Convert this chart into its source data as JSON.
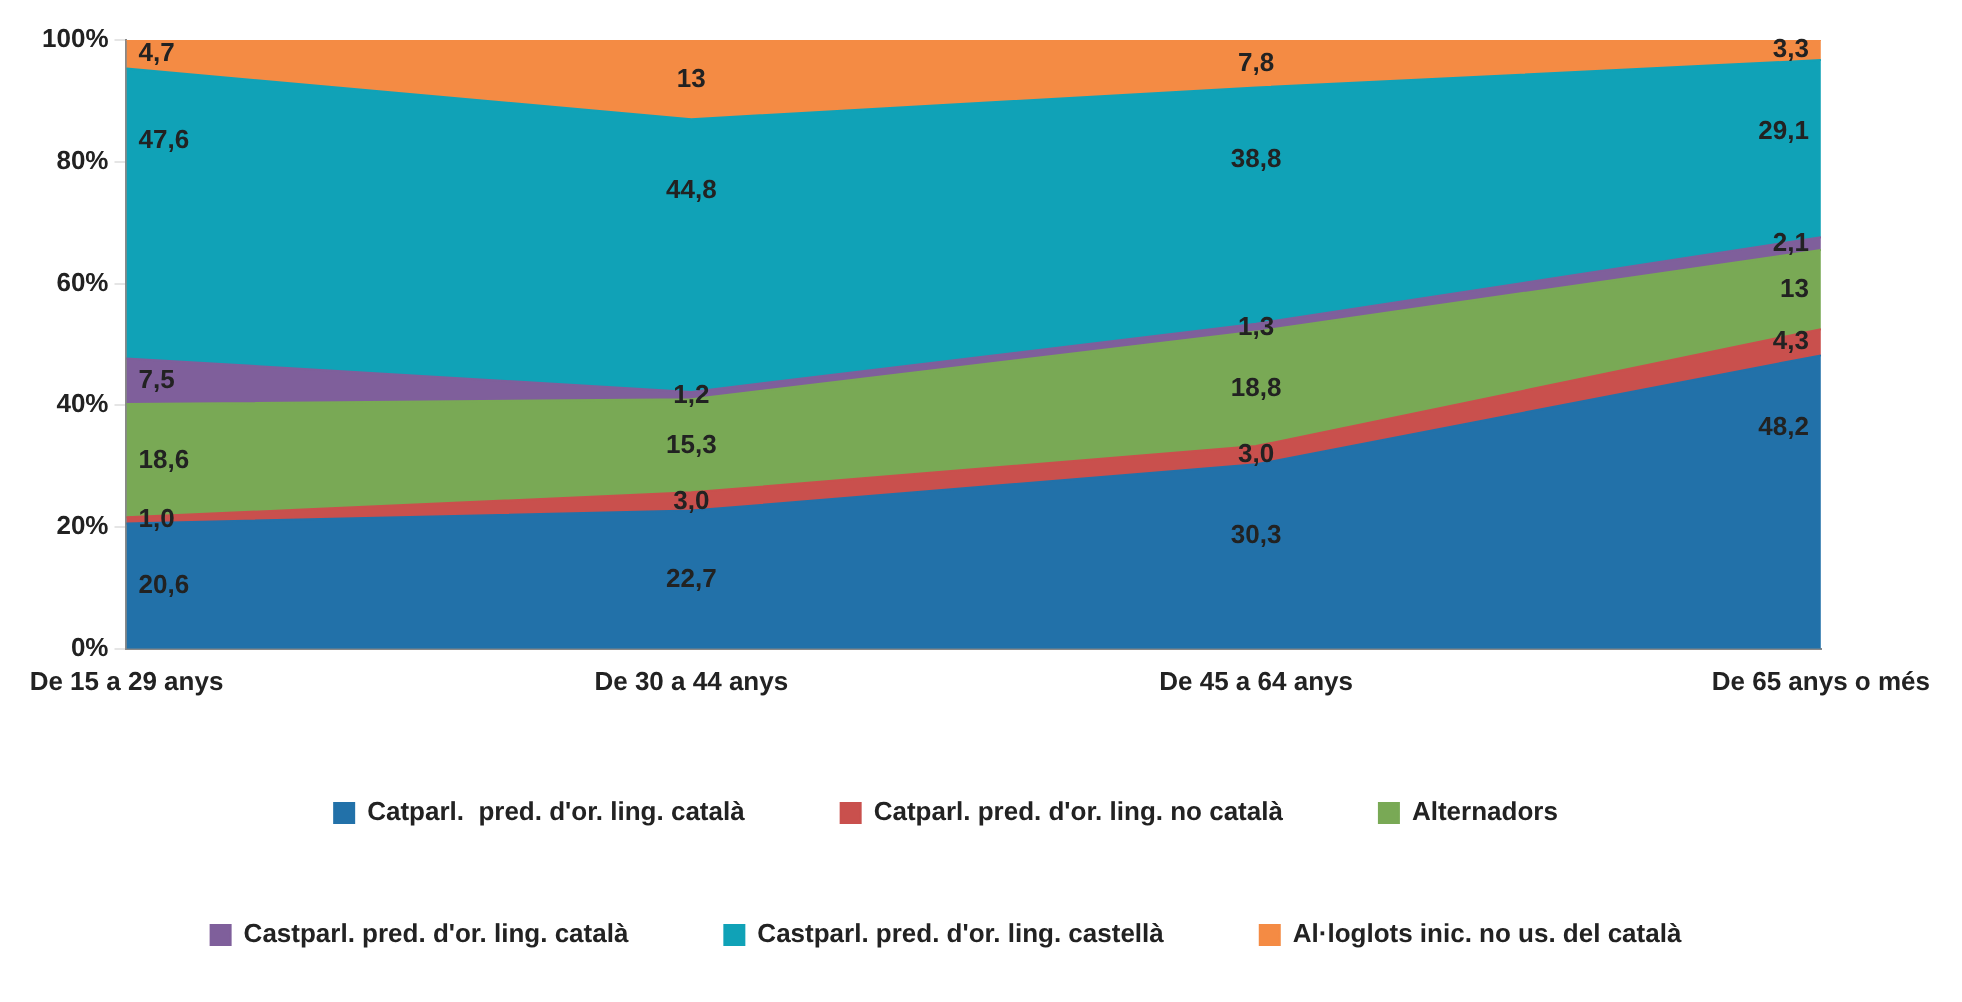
{
  "chart_data": {
    "type": "area",
    "stacked": true,
    "categories": [
      "De 15 a 29 anys",
      "De 30 a 44 anys",
      "De 45 a 64 anys",
      "De 65 anys o més"
    ],
    "series": [
      {
        "name": "Catparl.  pred. d'or. ling. català",
        "color": "#2271a9",
        "values": [
          20.6,
          22.7,
          30.3,
          48.2
        ],
        "value_labels": [
          "20,6",
          "22,7",
          "30,3",
          "48,2"
        ]
      },
      {
        "name": "Catparl. pred. d'or. ling. no català",
        "color": "#c9504d",
        "values": [
          1.0,
          3.0,
          3.0,
          4.3
        ],
        "value_labels": [
          "1,0",
          "3,0",
          "3,0",
          "4,3"
        ]
      },
      {
        "name": "Alternadors",
        "color": "#79a955",
        "values": [
          18.6,
          15.3,
          18.8,
          13
        ],
        "value_labels": [
          "18,6",
          "15,3",
          "18,8",
          "13"
        ]
      },
      {
        "name": "Castparl. pred. d'or. ling. català",
        "color": "#7f5f9b",
        "values": [
          7.5,
          1.2,
          1.3,
          2.1
        ],
        "value_labels": [
          "7,5",
          "1,2",
          "1,3",
          "2,1"
        ]
      },
      {
        "name": "Castparl. pred. d'or. ling. castellà",
        "color": "#10a2b7",
        "values": [
          47.6,
          44.8,
          38.8,
          29.1
        ],
        "value_labels": [
          "47,6",
          "44,8",
          "38,8",
          "29,1"
        ]
      },
      {
        "name": "Al·loglots inic. no us. del català",
        "color": "#f48b44",
        "values": [
          4.7,
          13,
          7.8,
          3.3
        ],
        "value_labels": [
          "4,7",
          "13",
          "7,8",
          "3,3"
        ]
      }
    ],
    "ylim": [
      0,
      100
    ],
    "yticks": [
      {
        "value": 0,
        "label": "0%"
      },
      {
        "value": 20,
        "label": "20%"
      },
      {
        "value": 40,
        "label": "40%"
      },
      {
        "value": 60,
        "label": "60%"
      },
      {
        "value": 80,
        "label": "80%"
      },
      {
        "value": 100,
        "label": "100%"
      }
    ],
    "grid": false,
    "legend": "bottom"
  }
}
